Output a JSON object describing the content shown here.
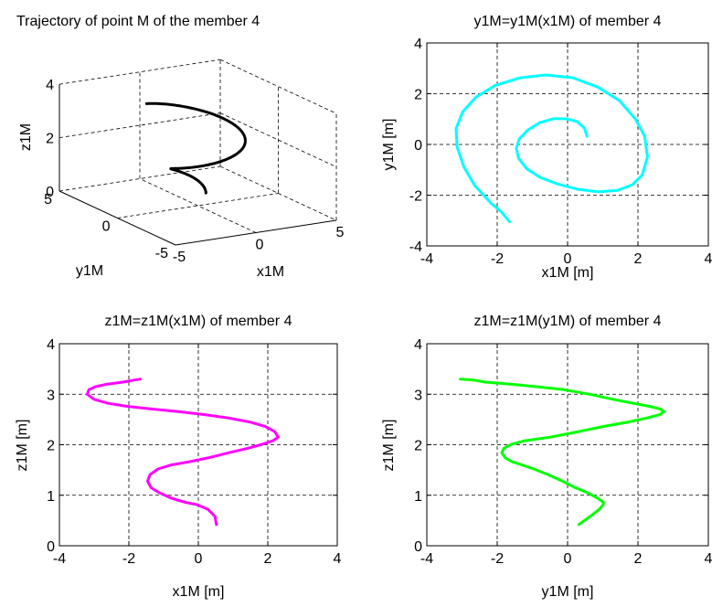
{
  "chart_data": [
    {
      "type": "line3d",
      "title": "Trajectory of point M of the member 4",
      "xlabel": "x1M",
      "ylabel": "y1M",
      "zlabel": "z1M",
      "xlim": [
        -5,
        5
      ],
      "ylim": [
        -5,
        5
      ],
      "zlim": [
        0,
        4
      ],
      "xticks": [
        "-5",
        "0",
        "5"
      ],
      "yticks": [
        "-5",
        "0",
        "5"
      ],
      "zticks": [
        "0",
        "2",
        "4"
      ],
      "grid": true,
      "series": [
        {
          "color": "#000000",
          "helix": {
            "r_start": 0.5,
            "r_end": 3.2,
            "turns": 1.3,
            "z_start": 0.43,
            "z_end": 3.3,
            "phase_start_deg": 0
          }
        }
      ]
    },
    {
      "type": "line",
      "title": "y1M=y1M(x1M) of member 4",
      "xlabel": "x1M [m]",
      "ylabel": "y1M [m]",
      "xlim": [
        -4,
        4
      ],
      "ylim": [
        -4,
        4
      ],
      "xticks": [
        "-4",
        "-2",
        "0",
        "2",
        "4"
      ],
      "yticks": [
        "-4",
        "-2",
        "0",
        "2",
        "4"
      ],
      "grid": true,
      "series": [
        {
          "color": "#00ffff",
          "x": [
            0.55,
            0.48,
            0.27,
            -0.03,
            -0.38,
            -0.79,
            -1.13,
            -1.37,
            -1.46,
            -1.39,
            -1.16,
            -0.78,
            -0.28,
            0.29,
            0.88,
            1.42,
            1.84,
            2.12,
            2.27,
            2.19,
            1.93,
            1.47,
            0.86,
            0.14,
            -0.63,
            -1.37,
            -2.05,
            -2.6,
            -2.98,
            -3.17,
            -3.14,
            -2.95,
            -2.64,
            -2.16,
            -1.88,
            -1.65
          ],
          "y": [
            0.32,
            0.64,
            0.9,
            1.01,
            1.02,
            0.86,
            0.57,
            0.22,
            -0.15,
            -0.56,
            -0.96,
            -1.3,
            -1.56,
            -1.77,
            -1.87,
            -1.81,
            -1.59,
            -1.21,
            -0.49,
            0.32,
            1.0,
            1.73,
            2.26,
            2.63,
            2.74,
            2.62,
            2.33,
            1.87,
            1.29,
            0.63,
            -0.1,
            -0.88,
            -1.62,
            -2.34,
            -2.66,
            -3.05
          ]
        }
      ]
    },
    {
      "type": "line",
      "title": "z1M=z1M(x1M) of member 4",
      "xlabel": "x1M [m]",
      "ylabel": "z1M [m]",
      "xlim": [
        -4,
        4
      ],
      "ylim": [
        0,
        4
      ],
      "xticks": [
        "-4",
        "-2",
        "0",
        "2",
        "4"
      ],
      "yticks": [
        "0",
        "1",
        "2",
        "3",
        "4"
      ],
      "grid": true,
      "series": [
        {
          "color": "#ff00ff",
          "x": [
            0.52,
            0.48,
            0.28,
            -0.02,
            -0.37,
            -0.77,
            -1.12,
            -1.36,
            -1.46,
            -1.39,
            -1.16,
            -0.78,
            -0.29,
            0.28,
            0.87,
            1.42,
            1.85,
            2.15,
            2.3,
            2.2,
            1.93,
            1.48,
            0.86,
            0.14,
            -0.64,
            -1.38,
            -2.05,
            -2.6,
            -3.0,
            -3.2,
            -3.15,
            -2.96,
            -2.62,
            -2.17,
            -1.85,
            -1.67
          ],
          "y": [
            0.42,
            0.58,
            0.72,
            0.81,
            0.86,
            0.94,
            1.05,
            1.15,
            1.28,
            1.41,
            1.52,
            1.6,
            1.66,
            1.74,
            1.84,
            1.93,
            2.01,
            2.08,
            2.15,
            2.26,
            2.36,
            2.45,
            2.53,
            2.6,
            2.66,
            2.71,
            2.76,
            2.82,
            2.9,
            3.0,
            3.09,
            3.15,
            3.2,
            3.24,
            3.28,
            3.3
          ]
        }
      ]
    },
    {
      "type": "line",
      "title": "z1M=z1M(y1M) of member 4",
      "xlabel": "y1M [m]",
      "ylabel": "z1M [m]",
      "xlim": [
        -4,
        4
      ],
      "ylim": [
        0,
        4
      ],
      "xticks": [
        "-4",
        "-2",
        "0",
        "2",
        "4"
      ],
      "yticks": [
        "0",
        "1",
        "2",
        "3",
        "4"
      ],
      "grid": true,
      "series": [
        {
          "color": "#00ff00",
          "x": [
            0.32,
            0.64,
            0.9,
            1.01,
            1.02,
            0.86,
            0.57,
            0.22,
            -0.15,
            -0.56,
            -0.96,
            -1.3,
            -1.56,
            -1.77,
            -1.87,
            -1.81,
            -1.59,
            -1.21,
            -0.49,
            0.32,
            1.0,
            1.73,
            2.26,
            2.63,
            2.74,
            2.62,
            2.33,
            1.87,
            1.29,
            0.63,
            -0.1,
            -0.88,
            -1.62,
            -2.34,
            -2.66,
            -3.05
          ],
          "y": [
            0.42,
            0.58,
            0.72,
            0.81,
            0.86,
            0.94,
            1.05,
            1.15,
            1.28,
            1.41,
            1.52,
            1.6,
            1.66,
            1.74,
            1.84,
            1.93,
            2.01,
            2.08,
            2.15,
            2.26,
            2.36,
            2.45,
            2.53,
            2.6,
            2.66,
            2.71,
            2.76,
            2.82,
            2.9,
            3.0,
            3.09,
            3.15,
            3.2,
            3.24,
            3.28,
            3.3
          ]
        }
      ]
    }
  ]
}
